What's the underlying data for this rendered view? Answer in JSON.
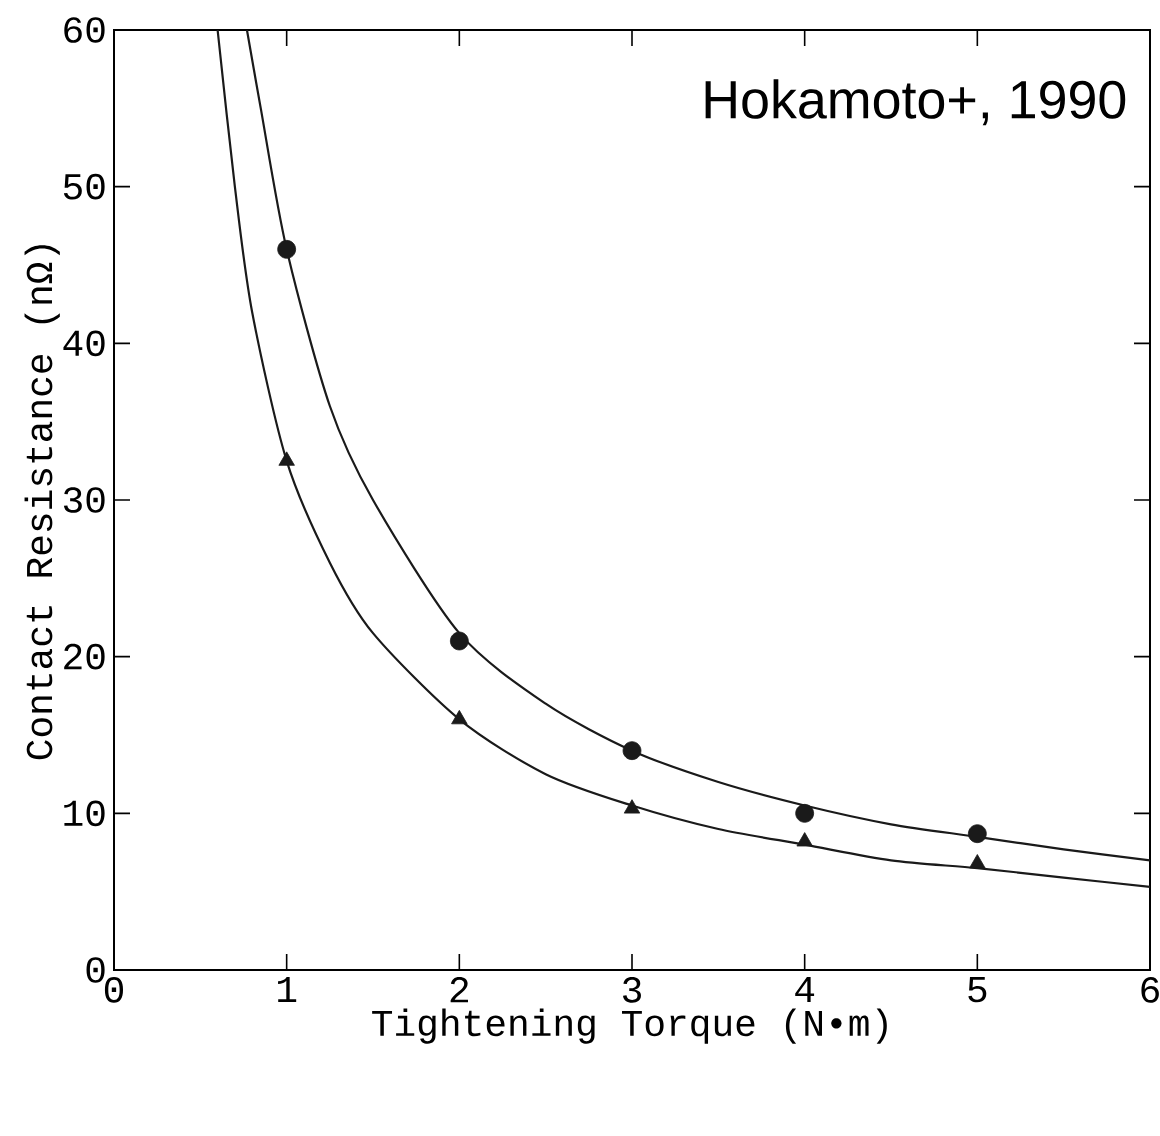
{
  "chart_data": {
    "type": "scatter",
    "xlabel": "Tightening Torque (N•m)",
    "ylabel": "Contact Resistance (nΩ)",
    "annotations": [
      "Hokamoto+, 1990"
    ],
    "xlim": [
      0,
      6
    ],
    "ylim": [
      0,
      60
    ],
    "xticks": [
      0,
      1,
      2,
      3,
      4,
      5,
      6
    ],
    "yticks": [
      0,
      10,
      20,
      30,
      40,
      50,
      60
    ],
    "grid": false,
    "series": [
      {
        "marker": "circle",
        "color": "#1a1a1a",
        "x": [
          1,
          2,
          3,
          4,
          5
        ],
        "values": [
          46,
          21,
          14,
          10,
          8.7
        ]
      },
      {
        "marker": "triangle",
        "color": "#1a1a1a",
        "x": [
          1,
          2,
          3,
          4,
          5
        ],
        "values": [
          32.5,
          16,
          10.3,
          8.2,
          6.8
        ]
      },
      {
        "type": "line",
        "marker": "none",
        "line_style": "solid",
        "color": "#1a1a1a",
        "x": [
          0.77,
          0.85,
          1,
          1.25,
          1.5,
          2,
          2.5,
          3,
          3.5,
          4,
          4.5,
          5,
          5.5,
          6
        ],
        "values": [
          60,
          55,
          46,
          36,
          30,
          21.5,
          17,
          14,
          12,
          10.5,
          9.3,
          8.5,
          7.7,
          7
        ]
      },
      {
        "type": "line",
        "marker": "none",
        "line_style": "solid",
        "color": "#1a1a1a",
        "x": [
          0.6,
          0.7,
          0.8,
          1,
          1.25,
          1.5,
          2,
          2.5,
          3,
          3.5,
          4,
          4.5,
          5,
          5.5,
          6
        ],
        "values": [
          60,
          50,
          42,
          32.5,
          26,
          21.5,
          16,
          12.5,
          10.5,
          9,
          8,
          7,
          6.5,
          5.9,
          5.3
        ]
      }
    ]
  }
}
